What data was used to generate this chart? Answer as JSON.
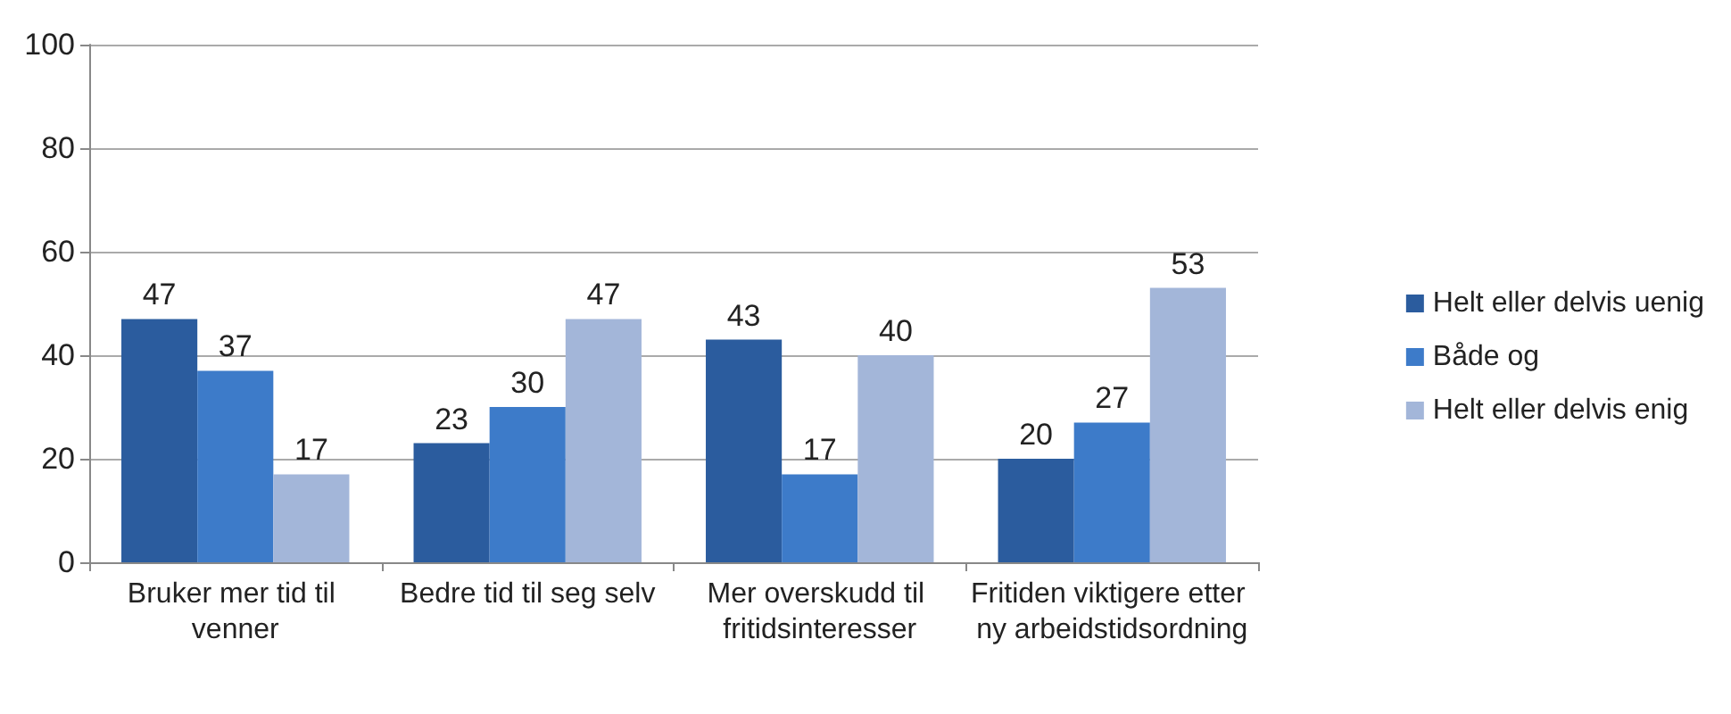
{
  "chart_data": {
    "type": "bar",
    "categories": [
      "Bruker mer tid til venner",
      "Bedre tid til seg selv",
      "Mer overskudd til fritidsinteresser",
      "Fritiden viktigere etter ny arbeidstidsordning"
    ],
    "series": [
      {
        "name": "Helt eller delvis uenig",
        "color": "#2b5c9e",
        "values": [
          47,
          23,
          43,
          20
        ]
      },
      {
        "name": "Både og",
        "color": "#3d7bc9",
        "values": [
          37,
          30,
          17,
          27
        ]
      },
      {
        "name": "Helt eller delvis enig",
        "color": "#a3b6d9",
        "values": [
          17,
          47,
          40,
          53
        ]
      }
    ],
    "ylim": [
      0,
      100
    ],
    "yticks": [
      0,
      20,
      40,
      60,
      80,
      100
    ],
    "grid": "y",
    "legend": "right",
    "data_labels": true
  }
}
